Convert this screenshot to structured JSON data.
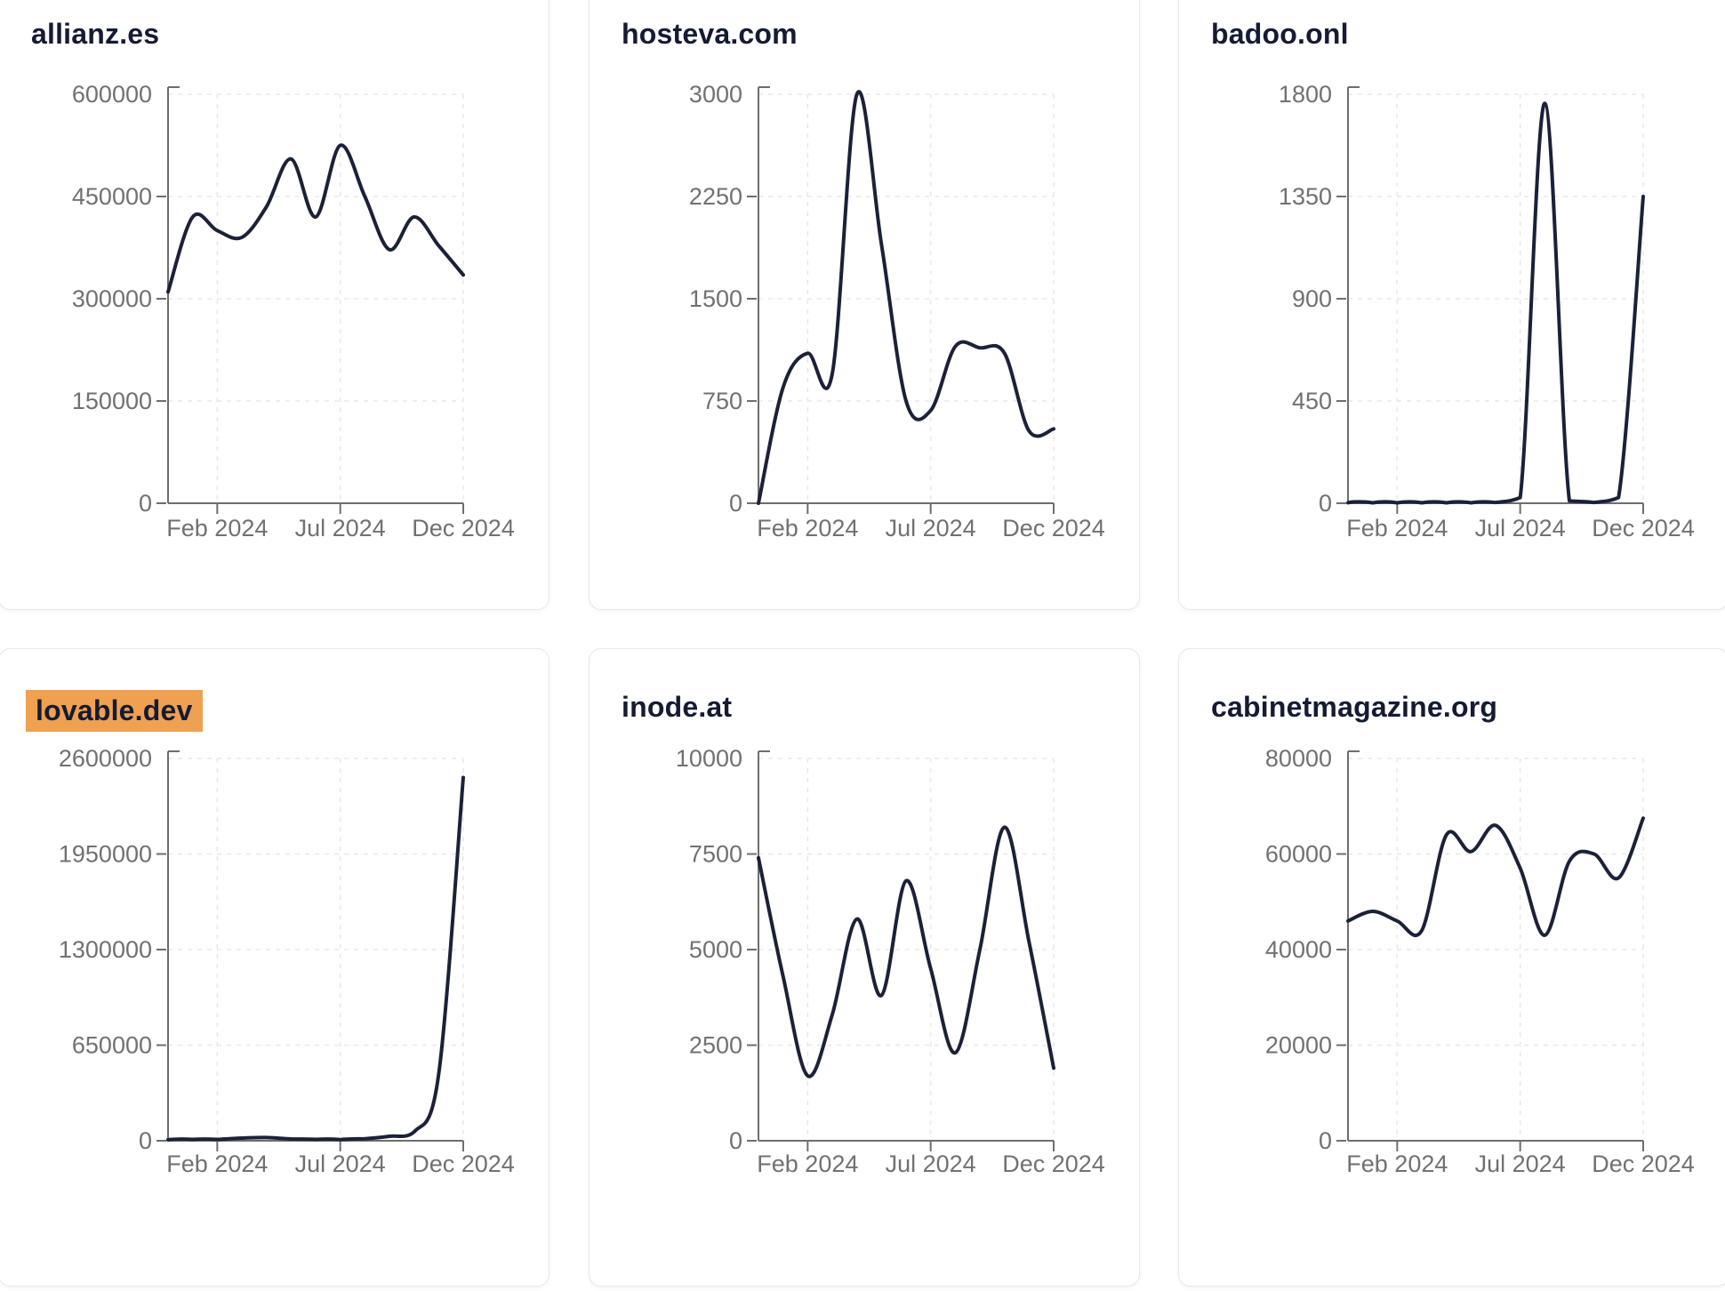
{
  "page": {
    "background": "#ffffff"
  },
  "style": {
    "line_color": "#1b2138",
    "title_color": "#141b33",
    "axis_color": "#6e6e6e",
    "tick_text_color": "#717171",
    "grid_color": "#e8e8e8",
    "card_border_color": "#e4e7f0",
    "highlight_color": "#efa051"
  },
  "x_axis_visible_labels": [
    "Feb 2024",
    "Jul 2024",
    "Dec 2024"
  ],
  "chart_data": [
    {
      "type": "line",
      "title": "allianz.es",
      "title_highlight": null,
      "x": [
        "Dec 2023",
        "Jan 2024",
        "Feb 2024",
        "Mar 2024",
        "Apr 2024",
        "May 2024",
        "Jun 2024",
        "Jul 2024",
        "Aug 2024",
        "Sep 2024",
        "Oct 2024",
        "Nov 2024",
        "Dec 2024"
      ],
      "values": [
        310000,
        420000,
        400000,
        390000,
        435000,
        505000,
        420000,
        525000,
        450000,
        372000,
        420000,
        378000,
        335000
      ],
      "ylim": [
        0,
        600000
      ],
      "y_ticks": [
        0,
        150000,
        300000,
        450000,
        600000
      ],
      "x_tick_labels": [
        "Feb 2024",
        "Jul 2024",
        "Dec 2024"
      ],
      "x_tick_indices": [
        2,
        7,
        12
      ],
      "grid": true,
      "legend": false,
      "line_color": "#1b2138"
    },
    {
      "type": "line",
      "title": "hosteva.com",
      "title_highlight": null,
      "x": [
        "Dec 2023",
        "Jan 2024",
        "Feb 2024",
        "Mar 2024",
        "Apr 2024",
        "May 2024",
        "Jun 2024",
        "Jul 2024",
        "Aug 2024",
        "Sep 2024",
        "Oct 2024",
        "Nov 2024",
        "Dec 2024"
      ],
      "values": [
        0,
        850,
        1100,
        950,
        3000,
        1900,
        750,
        680,
        1150,
        1140,
        1100,
        530,
        545
      ],
      "ylim": [
        0,
        3000
      ],
      "y_ticks": [
        0,
        750,
        1500,
        2250,
        3000
      ],
      "x_tick_labels": [
        "Feb 2024",
        "Jul 2024",
        "Dec 2024"
      ],
      "x_tick_indices": [
        2,
        7,
        12
      ],
      "grid": true,
      "legend": false,
      "line_color": "#1b2138"
    },
    {
      "type": "line",
      "title": "badoo.onl",
      "title_highlight": null,
      "x": [
        "Dec 2023",
        "Jan 2024",
        "Feb 2024",
        "Mar 2024",
        "Apr 2024",
        "May 2024",
        "Jun 2024",
        "Jul 2024",
        "Aug 2024",
        "Sep 2024",
        "Oct 2024",
        "Nov 2024",
        "Dec 2024"
      ],
      "values": [
        2,
        2,
        2,
        2,
        2,
        2,
        3,
        25,
        1760,
        10,
        3,
        25,
        1350
      ],
      "ylim": [
        0,
        1800
      ],
      "y_ticks": [
        0,
        450,
        900,
        1350,
        1800
      ],
      "x_tick_labels": [
        "Feb 2024",
        "Jul 2024",
        "Dec 2024"
      ],
      "x_tick_indices": [
        2,
        7,
        12
      ],
      "grid": true,
      "legend": false,
      "line_color": "#1b2138"
    },
    {
      "type": "line",
      "title": "lovable.dev",
      "title_highlight": "#efa051",
      "x": [
        "Dec 2023",
        "Jan 2024",
        "Feb 2024",
        "Mar 2024",
        "Apr 2024",
        "May 2024",
        "Jun 2024",
        "Jul 2024",
        "Aug 2024",
        "Sep 2024",
        "Oct 2024",
        "Nov 2024",
        "Dec 2024"
      ],
      "values": [
        6000,
        9000,
        9000,
        18000,
        22000,
        12000,
        9000,
        8000,
        14000,
        30000,
        60000,
        450000,
        2470000
      ],
      "ylim": [
        0,
        2600000
      ],
      "y_ticks": [
        0,
        650000,
        1300000,
        1950000,
        2600000
      ],
      "x_tick_labels": [
        "Feb 2024",
        "Jul 2024",
        "Dec 2024"
      ],
      "x_tick_indices": [
        2,
        7,
        12
      ],
      "grid": true,
      "legend": false,
      "line_color": "#1b2138"
    },
    {
      "type": "line",
      "title": "inode.at",
      "title_highlight": null,
      "x": [
        "Dec 2023",
        "Jan 2024",
        "Feb 2024",
        "Mar 2024",
        "Apr 2024",
        "May 2024",
        "Jun 2024",
        "Jul 2024",
        "Aug 2024",
        "Sep 2024",
        "Oct 2024",
        "Nov 2024",
        "Dec 2024"
      ],
      "values": [
        7400,
        4300,
        1700,
        3300,
        5800,
        3800,
        6800,
        4500,
        2300,
        5000,
        8200,
        5200,
        1900
      ],
      "ylim": [
        0,
        10000
      ],
      "y_ticks": [
        0,
        2500,
        5000,
        7500,
        10000
      ],
      "x_tick_labels": [
        "Feb 2024",
        "Jul 2024",
        "Dec 2024"
      ],
      "x_tick_indices": [
        2,
        7,
        12
      ],
      "grid": true,
      "legend": false,
      "line_color": "#1b2138"
    },
    {
      "type": "line",
      "title": "cabinetmagazine.org",
      "title_highlight": null,
      "x": [
        "Dec 2023",
        "Jan 2024",
        "Feb 2024",
        "Mar 2024",
        "Apr 2024",
        "May 2024",
        "Jun 2024",
        "Jul 2024",
        "Aug 2024",
        "Sep 2024",
        "Oct 2024",
        "Nov 2024",
        "Dec 2024"
      ],
      "values": [
        46000,
        48000,
        46000,
        44000,
        64000,
        60500,
        66000,
        57000,
        43000,
        58500,
        60000,
        55000,
        67500
      ],
      "ylim": [
        0,
        80000
      ],
      "y_ticks": [
        0,
        20000,
        40000,
        60000,
        80000
      ],
      "x_tick_labels": [
        "Feb 2024",
        "Jul 2024",
        "Dec 2024"
      ],
      "x_tick_indices": [
        2,
        7,
        12
      ],
      "grid": true,
      "legend": false,
      "line_color": "#1b2138"
    }
  ]
}
